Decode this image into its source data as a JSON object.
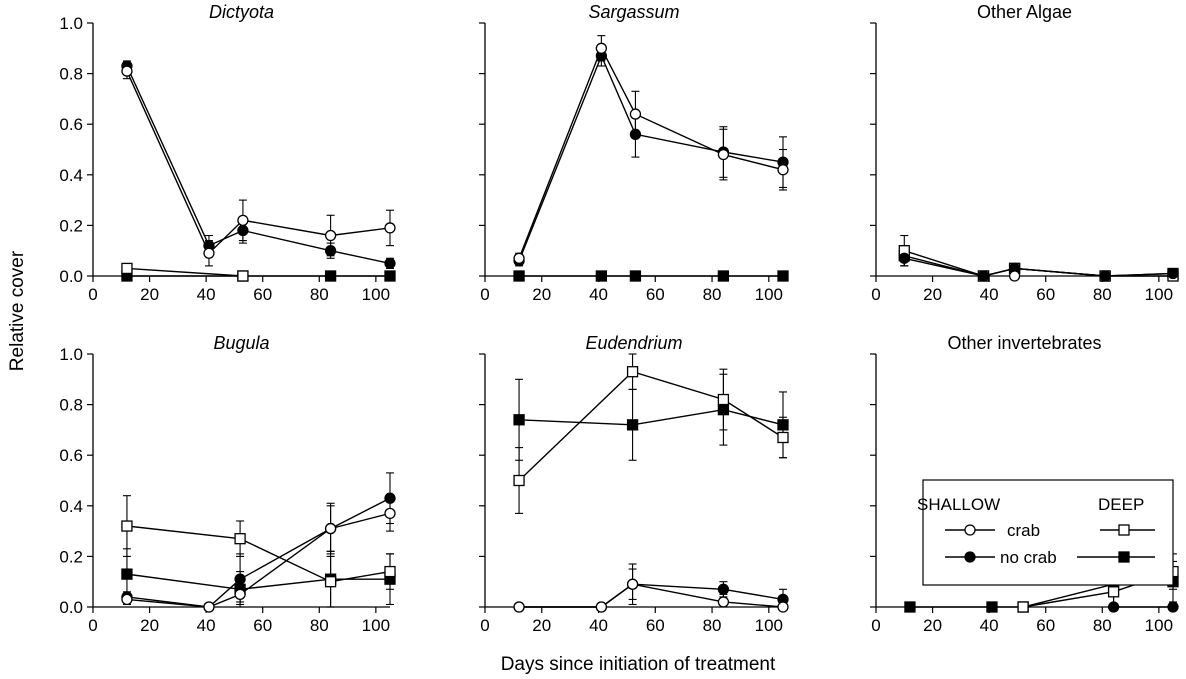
{
  "figure": {
    "ylabel": "Relative cover",
    "xlabel": "Days since initiation of treatment"
  },
  "legend": {
    "shallow_label": "SHALLOW",
    "deep_label": "DEEP",
    "crab_label": "crab",
    "nocrab_label": "no crab"
  },
  "chart_data": [
    {
      "type": "line",
      "title": "Dictyota",
      "title_style": "italic",
      "xlim": [
        0,
        105
      ],
      "ylim": [
        0,
        1.0
      ],
      "xticks": [
        "0",
        "20",
        "40",
        "60",
        "80",
        "100"
      ],
      "yticks": [
        "0.0",
        "0.2",
        "0.4",
        "0.6",
        "0.8",
        "1.0"
      ],
      "series": [
        {
          "treatment": "shallow crab",
          "marker": "circle-open",
          "x": [
            12,
            41,
            53,
            84,
            105
          ],
          "y": [
            0.81,
            0.09,
            0.22,
            0.16,
            0.19
          ],
          "err": [
            0.03,
            0.05,
            0.08,
            0.08,
            0.07
          ]
        },
        {
          "treatment": "shallow no crab",
          "marker": "circle-filled",
          "x": [
            12,
            41,
            53,
            84,
            105
          ],
          "y": [
            0.83,
            0.12,
            0.18,
            0.1,
            0.05
          ],
          "err": [
            0.02,
            0.04,
            0.05,
            0.03,
            0.02
          ]
        },
        {
          "treatment": "deep crab",
          "marker": "square-open",
          "x": [
            12,
            53
          ],
          "y": [
            0.03,
            0.0
          ],
          "err": [
            0.01,
            0.0
          ]
        },
        {
          "treatment": "deep no crab",
          "marker": "square-filled",
          "x": [
            12,
            53,
            84,
            105
          ],
          "y": [
            0.0,
            0.0,
            0.0,
            0.0
          ],
          "err": [
            0,
            0,
            0,
            0
          ]
        }
      ]
    },
    {
      "type": "line",
      "title": "Sargassum",
      "title_style": "italic",
      "xlim": [
        0,
        105
      ],
      "ylim": [
        0,
        1.0
      ],
      "xticks": [
        "0",
        "20",
        "40",
        "60",
        "80",
        "100"
      ],
      "yticks": [],
      "series": [
        {
          "treatment": "shallow crab",
          "marker": "circle-open",
          "x": [
            12,
            41,
            53,
            84,
            105
          ],
          "y": [
            0.07,
            0.9,
            0.64,
            0.48,
            0.42
          ],
          "err": [
            0.02,
            0.05,
            0.09,
            0.1,
            0.08
          ]
        },
        {
          "treatment": "shallow no crab",
          "marker": "circle-filled",
          "x": [
            12,
            41,
            53,
            84,
            105
          ],
          "y": [
            0.06,
            0.87,
            0.56,
            0.49,
            0.45
          ],
          "err": [
            0.02,
            0.04,
            0.09,
            0.1,
            0.1
          ]
        },
        {
          "treatment": "deep no crab",
          "marker": "square-filled",
          "x": [
            12,
            41,
            53,
            84,
            105
          ],
          "y": [
            0.0,
            0.0,
            0.0,
            0.0,
            0.0
          ],
          "err": [
            0,
            0,
            0,
            0,
            0
          ]
        }
      ]
    },
    {
      "type": "line",
      "title": "Other Algae",
      "title_style": "normal",
      "xlim": [
        0,
        105
      ],
      "ylim": [
        0,
        1.0
      ],
      "xticks": [
        "0",
        "20",
        "40",
        "60",
        "80",
        "100"
      ],
      "yticks": [],
      "series": [
        {
          "treatment": "deep crab",
          "marker": "square-open",
          "x": [
            10,
            38,
            49,
            81,
            105
          ],
          "y": [
            0.1,
            0.0,
            0.03,
            0.0,
            0.0
          ],
          "err": [
            0.06,
            0,
            0.01,
            0,
            0
          ]
        },
        {
          "treatment": "deep no crab",
          "marker": "square-filled",
          "x": [
            10,
            38,
            49,
            81,
            105
          ],
          "y": [
            0.08,
            0.0,
            0.03,
            0.0,
            0.01
          ],
          "err": [
            0.04,
            0,
            0.01,
            0,
            0
          ]
        },
        {
          "treatment": "shallow no crab",
          "marker": "circle-filled",
          "x": [
            10,
            38,
            49,
            81,
            105
          ],
          "y": [
            0.07,
            0.0,
            0.03,
            0.0,
            0.01
          ],
          "err": [
            0.03,
            0,
            0.01,
            0,
            0
          ]
        },
        {
          "treatment": "shallow crab",
          "marker": "circle-open",
          "x": [
            49
          ],
          "y": [
            0.0
          ],
          "err": [
            0
          ]
        }
      ]
    },
    {
      "type": "line",
      "title": "Bugula",
      "title_style": "italic",
      "xlim": [
        0,
        105
      ],
      "ylim": [
        0,
        1.0
      ],
      "xticks": [
        "0",
        "20",
        "40",
        "60",
        "80",
        "100"
      ],
      "yticks": [
        "0.0",
        "0.2",
        "0.4",
        "0.6",
        "0.8",
        "1.0"
      ],
      "series": [
        {
          "treatment": "deep crab",
          "marker": "square-open",
          "x": [
            12,
            52,
            84,
            105
          ],
          "y": [
            0.32,
            0.27,
            0.1,
            0.14
          ],
          "err": [
            0.12,
            0.07,
            0.1,
            0.07
          ]
        },
        {
          "treatment": "deep no crab",
          "marker": "square-filled",
          "x": [
            12,
            52,
            84,
            105
          ],
          "y": [
            0.13,
            0.07,
            0.11,
            0.11
          ],
          "err": [
            0.1,
            0.07,
            0.11,
            0.1
          ]
        },
        {
          "treatment": "shallow crab",
          "marker": "circle-open",
          "x": [
            12,
            41,
            52,
            84,
            105
          ],
          "y": [
            0.03,
            0.0,
            0.05,
            0.31,
            0.37
          ],
          "err": [
            0.02,
            0,
            0.03,
            0.09,
            0.07
          ]
        },
        {
          "treatment": "shallow no crab",
          "marker": "circle-filled",
          "x": [
            12,
            41,
            52,
            84,
            105
          ],
          "y": [
            0.04,
            0.0,
            0.11,
            0.31,
            0.43
          ],
          "err": [
            0.02,
            0,
            0.1,
            0.1,
            0.1
          ]
        }
      ]
    },
    {
      "type": "line",
      "title": "Eudendrium",
      "title_style": "italic",
      "xlim": [
        0,
        105
      ],
      "ylim": [
        0,
        1.0
      ],
      "xticks": [
        "0",
        "20",
        "40",
        "60",
        "80",
        "100"
      ],
      "yticks": [],
      "series": [
        {
          "treatment": "deep crab",
          "marker": "square-open",
          "x": [
            12,
            52,
            84,
            105
          ],
          "y": [
            0.5,
            0.93,
            0.82,
            0.67
          ],
          "err": [
            0.13,
            0.07,
            0.12,
            0.08
          ]
        },
        {
          "treatment": "deep no crab",
          "marker": "square-filled",
          "x": [
            12,
            52,
            84,
            105
          ],
          "y": [
            0.74,
            0.72,
            0.78,
            0.72
          ],
          "err": [
            0.16,
            0.14,
            0.14,
            0.13
          ]
        },
        {
          "treatment": "shallow crab",
          "marker": "circle-open",
          "x": [
            12,
            41,
            52,
            84,
            105
          ],
          "y": [
            0.0,
            0.0,
            0.09,
            0.02,
            0.0
          ],
          "err": [
            0,
            0,
            0.06,
            0.03,
            0
          ]
        },
        {
          "treatment": "shallow no crab",
          "marker": "circle-filled",
          "x": [
            12,
            41,
            52,
            84,
            105
          ],
          "y": [
            0.0,
            0.0,
            0.09,
            0.07,
            0.03
          ],
          "err": [
            0,
            0,
            0.08,
            0.03,
            0.04
          ]
        }
      ]
    },
    {
      "type": "line",
      "title": "Other invertebrates",
      "title_style": "normal",
      "xlim": [
        0,
        105
      ],
      "ylim": [
        0,
        1.0
      ],
      "xticks": [
        "0",
        "20",
        "40",
        "60",
        "80",
        "100"
      ],
      "yticks": [],
      "series": [
        {
          "treatment": "deep crab",
          "marker": "square-open",
          "x": [
            52,
            84,
            105
          ],
          "y": [
            0.0,
            0.06,
            0.14
          ],
          "err": [
            0,
            0.06,
            0.07
          ]
        },
        {
          "treatment": "deep no crab",
          "marker": "square-filled",
          "x": [
            12,
            41,
            52,
            84,
            105
          ],
          "y": [
            0.0,
            0.0,
            0.0,
            0.09,
            0.1
          ],
          "err": [
            0,
            0,
            0,
            0.1,
            0.08
          ]
        },
        {
          "treatment": "shallow no crab",
          "marker": "circle-filled",
          "x": [
            84,
            105
          ],
          "y": [
            0.0,
            0.0
          ],
          "err": [
            0,
            0
          ]
        }
      ]
    }
  ]
}
